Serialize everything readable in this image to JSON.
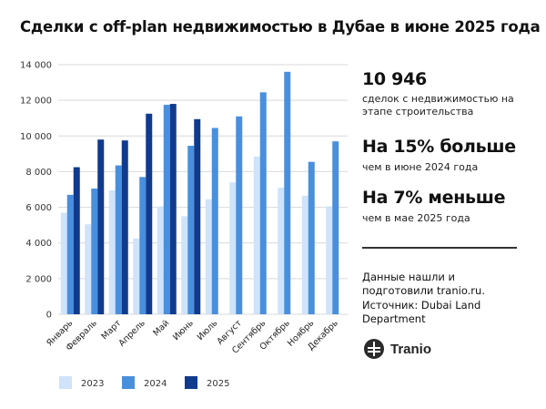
{
  "title": "Сделки с off-plan недвижимостью в Дубае в июне 2025 года",
  "stats": [
    {
      "value": "10 946",
      "desc": "сделок с недвижимостью на этапе строительства"
    },
    {
      "value": "На 15% больше",
      "desc": "чем в июне 2024 года"
    },
    {
      "value": "На 7% меньше",
      "desc": "чем в мае 2025 года"
    }
  ],
  "note": "Данные нашли и подготовили tranio.ru. Источник: Dubai Land Department",
  "brand": {
    "name": "Tranio",
    "icon": "tranio-logo-icon"
  },
  "colors": {
    "2023": "#cfe3fa",
    "2024": "#4a8fdc",
    "2025": "#0f3a8e",
    "grid": "#d9d9d9"
  },
  "chart_data": {
    "type": "bar",
    "categories": [
      "Январь",
      "Февраль",
      "Март",
      "Апрель",
      "Май",
      "Июнь",
      "Июль",
      "Август",
      "Сентябрь",
      "Октябрь",
      "Ноябрь",
      "Декабрь"
    ],
    "series": [
      {
        "name": "2023",
        "values": [
          5700,
          5050,
          6950,
          4250,
          6050,
          5500,
          6450,
          7400,
          8850,
          7100,
          6650,
          6050
        ]
      },
      {
        "name": "2024",
        "values": [
          6700,
          7050,
          8350,
          7700,
          11750,
          9450,
          10450,
          11100,
          12450,
          13600,
          8550,
          9700
        ]
      },
      {
        "name": "2025",
        "values": [
          8250,
          9800,
          9750,
          11250,
          11800,
          10946,
          null,
          null,
          null,
          null,
          null,
          null
        ]
      }
    ],
    "yticks": [
      "0",
      "2 000",
      "4 000",
      "6 000",
      "8 000",
      "10 000",
      "12 000",
      "14 000"
    ],
    "ylim": [
      0,
      14000
    ],
    "grid": true,
    "legend": "bottom"
  }
}
